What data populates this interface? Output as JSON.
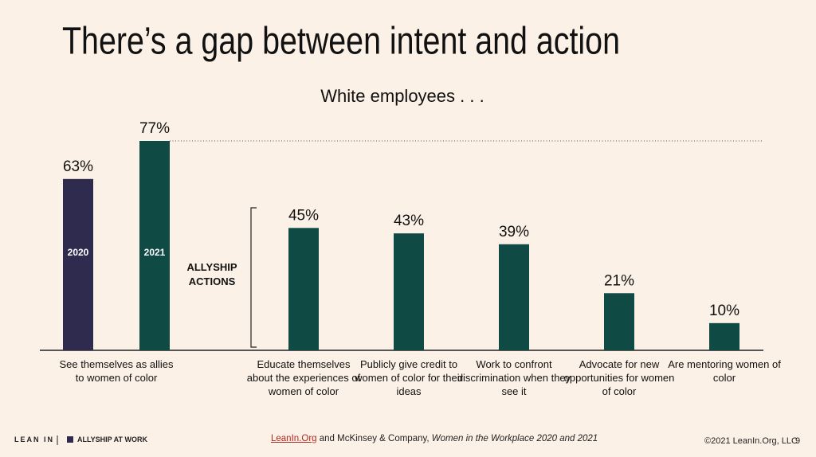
{
  "chart_data": {
    "type": "bar",
    "title": "There’s a gap between intent and action",
    "subtitle": "White employees . . .",
    "annotation": "ALLYSHIP ACTIONS",
    "categories": [
      "See themselves as allies to women of color",
      "Educate themselves about the experiences of women of color",
      "Publicly give credit to women of color for their ideas",
      "Work to confront discrimination when they see it",
      "Advocate for new opportunities for women of color",
      "Are mentoring women of color"
    ],
    "series": [
      {
        "name": "2020",
        "color": "#2f2b4e",
        "values": [
          63,
          null,
          null,
          null,
          null,
          null
        ],
        "value_labels": [
          "63%",
          null,
          null,
          null,
          null,
          null
        ]
      },
      {
        "name": "2021",
        "color": "#0f4a44",
        "values": [
          77,
          45,
          43,
          39,
          21,
          10
        ],
        "value_labels": [
          "77%",
          "45%",
          "43%",
          "39%",
          "21%",
          "10%"
        ]
      }
    ]
  },
  "footer": {
    "brand": "LEAN IN",
    "program": "ALLYSHIP AT WORK",
    "source": {
      "link": "LeanIn.Org",
      "text": " and McKinsey & Company, ",
      "italic": "Women in the Workplace 2020 and 2021"
    },
    "copyright": "©2021 LeanIn.Org, LLC",
    "page": "9"
  }
}
